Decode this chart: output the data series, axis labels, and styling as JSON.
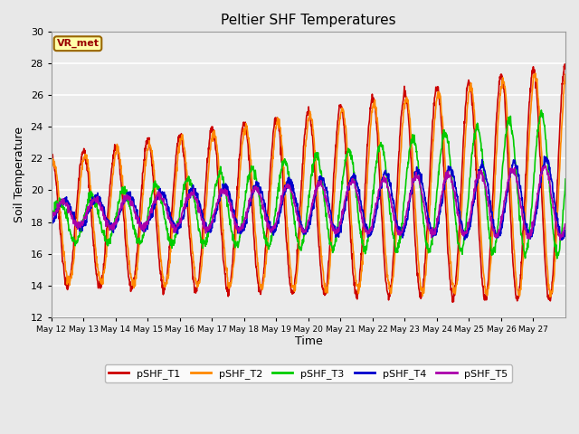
{
  "title": "Peltier SHF Temperatures",
  "xlabel": "Time",
  "ylabel": "Soil Temperature",
  "ylim": [
    12,
    30
  ],
  "annotation": "VR_met",
  "fig_bg_color": "#e8e8e8",
  "plot_bg_color": "#ebebeb",
  "grid_color": "#ffffff",
  "series": [
    {
      "label": "pSHF_T1",
      "color": "#cc0000"
    },
    {
      "label": "pSHF_T2",
      "color": "#ff8800"
    },
    {
      "label": "pSHF_T3",
      "color": "#00cc00"
    },
    {
      "label": "pSHF_T4",
      "color": "#0000cc"
    },
    {
      "label": "pSHF_T5",
      "color": "#aa00aa"
    }
  ],
  "xtick_labels": [
    "May 12",
    "May 13",
    "May 14",
    "May 15",
    "May 16",
    "May 17",
    "May 18",
    "May 19",
    "May 20",
    "May 21",
    "May 22",
    "May 23",
    "May 24",
    "May 25",
    "May 26",
    "May 27"
  ],
  "ytick_values": [
    12,
    14,
    16,
    18,
    20,
    22,
    24,
    26,
    28,
    30
  ],
  "linewidth": 1.2
}
